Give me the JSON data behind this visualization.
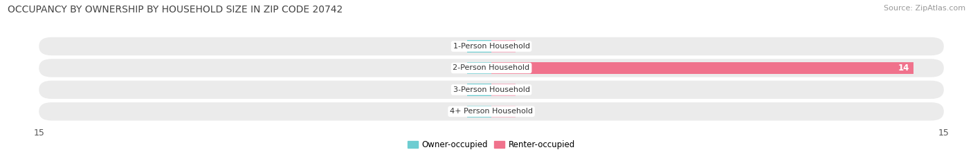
{
  "title": "OCCUPANCY BY OWNERSHIP BY HOUSEHOLD SIZE IN ZIP CODE 20742",
  "source": "Source: ZipAtlas.com",
  "categories": [
    "1-Person Household",
    "2-Person Household",
    "3-Person Household",
    "4+ Person Household"
  ],
  "owner_values": [
    0,
    0,
    0,
    0
  ],
  "renter_values": [
    0,
    14,
    0,
    0
  ],
  "xlim": 15,
  "owner_color": "#6dcdd1",
  "renter_color": "#f0728c",
  "renter_color_light": "#f5b8c8",
  "owner_color_legend": "#6dcdd1",
  "renter_color_legend": "#f0728c",
  "row_bg_color": "#ebebeb",
  "fig_bg_color": "#ffffff",
  "title_fontsize": 10,
  "source_fontsize": 8,
  "tick_fontsize": 9,
  "bar_height": 0.55,
  "fig_width": 14.06,
  "fig_height": 2.33,
  "legend_owner_label": "Owner-occupied",
  "legend_renter_label": "Renter-occupied"
}
